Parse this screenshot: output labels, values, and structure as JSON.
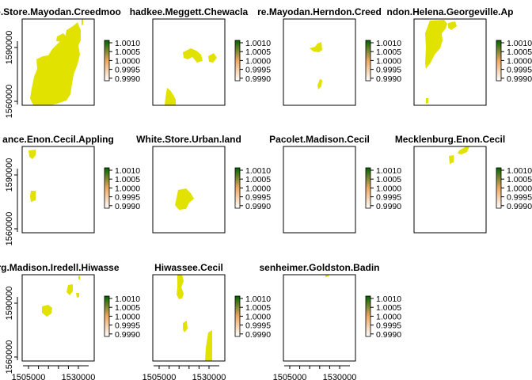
{
  "colors": {
    "fill": "#e2e200",
    "legend_low": "#ffffff",
    "legend_mid": "#f0a860",
    "legend_high": "#006400"
  },
  "y_axis_ticks": [
    "1560000",
    "1590000"
  ],
  "x_axis_ticks": [
    "1505000",
    "1530000"
  ],
  "legend_labels": [
    "1.0010",
    "1.0005",
    "1.0000",
    "0.9995",
    "0.9990"
  ],
  "panels": [
    {
      "title": "e.Store.Mayodan.Creedmoo"
    },
    {
      "title": "hadkee.Meggett.Chewacla"
    },
    {
      "title": "re.Mayodan.Herndon.Creed"
    },
    {
      "title": "ndon.Helena.Georgeville.Ap"
    },
    {
      "title": "ance.Enon.Cecil.Appling"
    },
    {
      "title": "White.Store.Urban.land"
    },
    {
      "title": "Pacolet.Madison.Cecil"
    },
    {
      "title": "Mecklenburg.Enon.Cecil"
    },
    {
      "title": "rg.Madison.Iredell.Hiwasse"
    },
    {
      "title": "Hiwassee.Cecil"
    },
    {
      "title": "senheimer.Goldston.Badin"
    }
  ]
}
